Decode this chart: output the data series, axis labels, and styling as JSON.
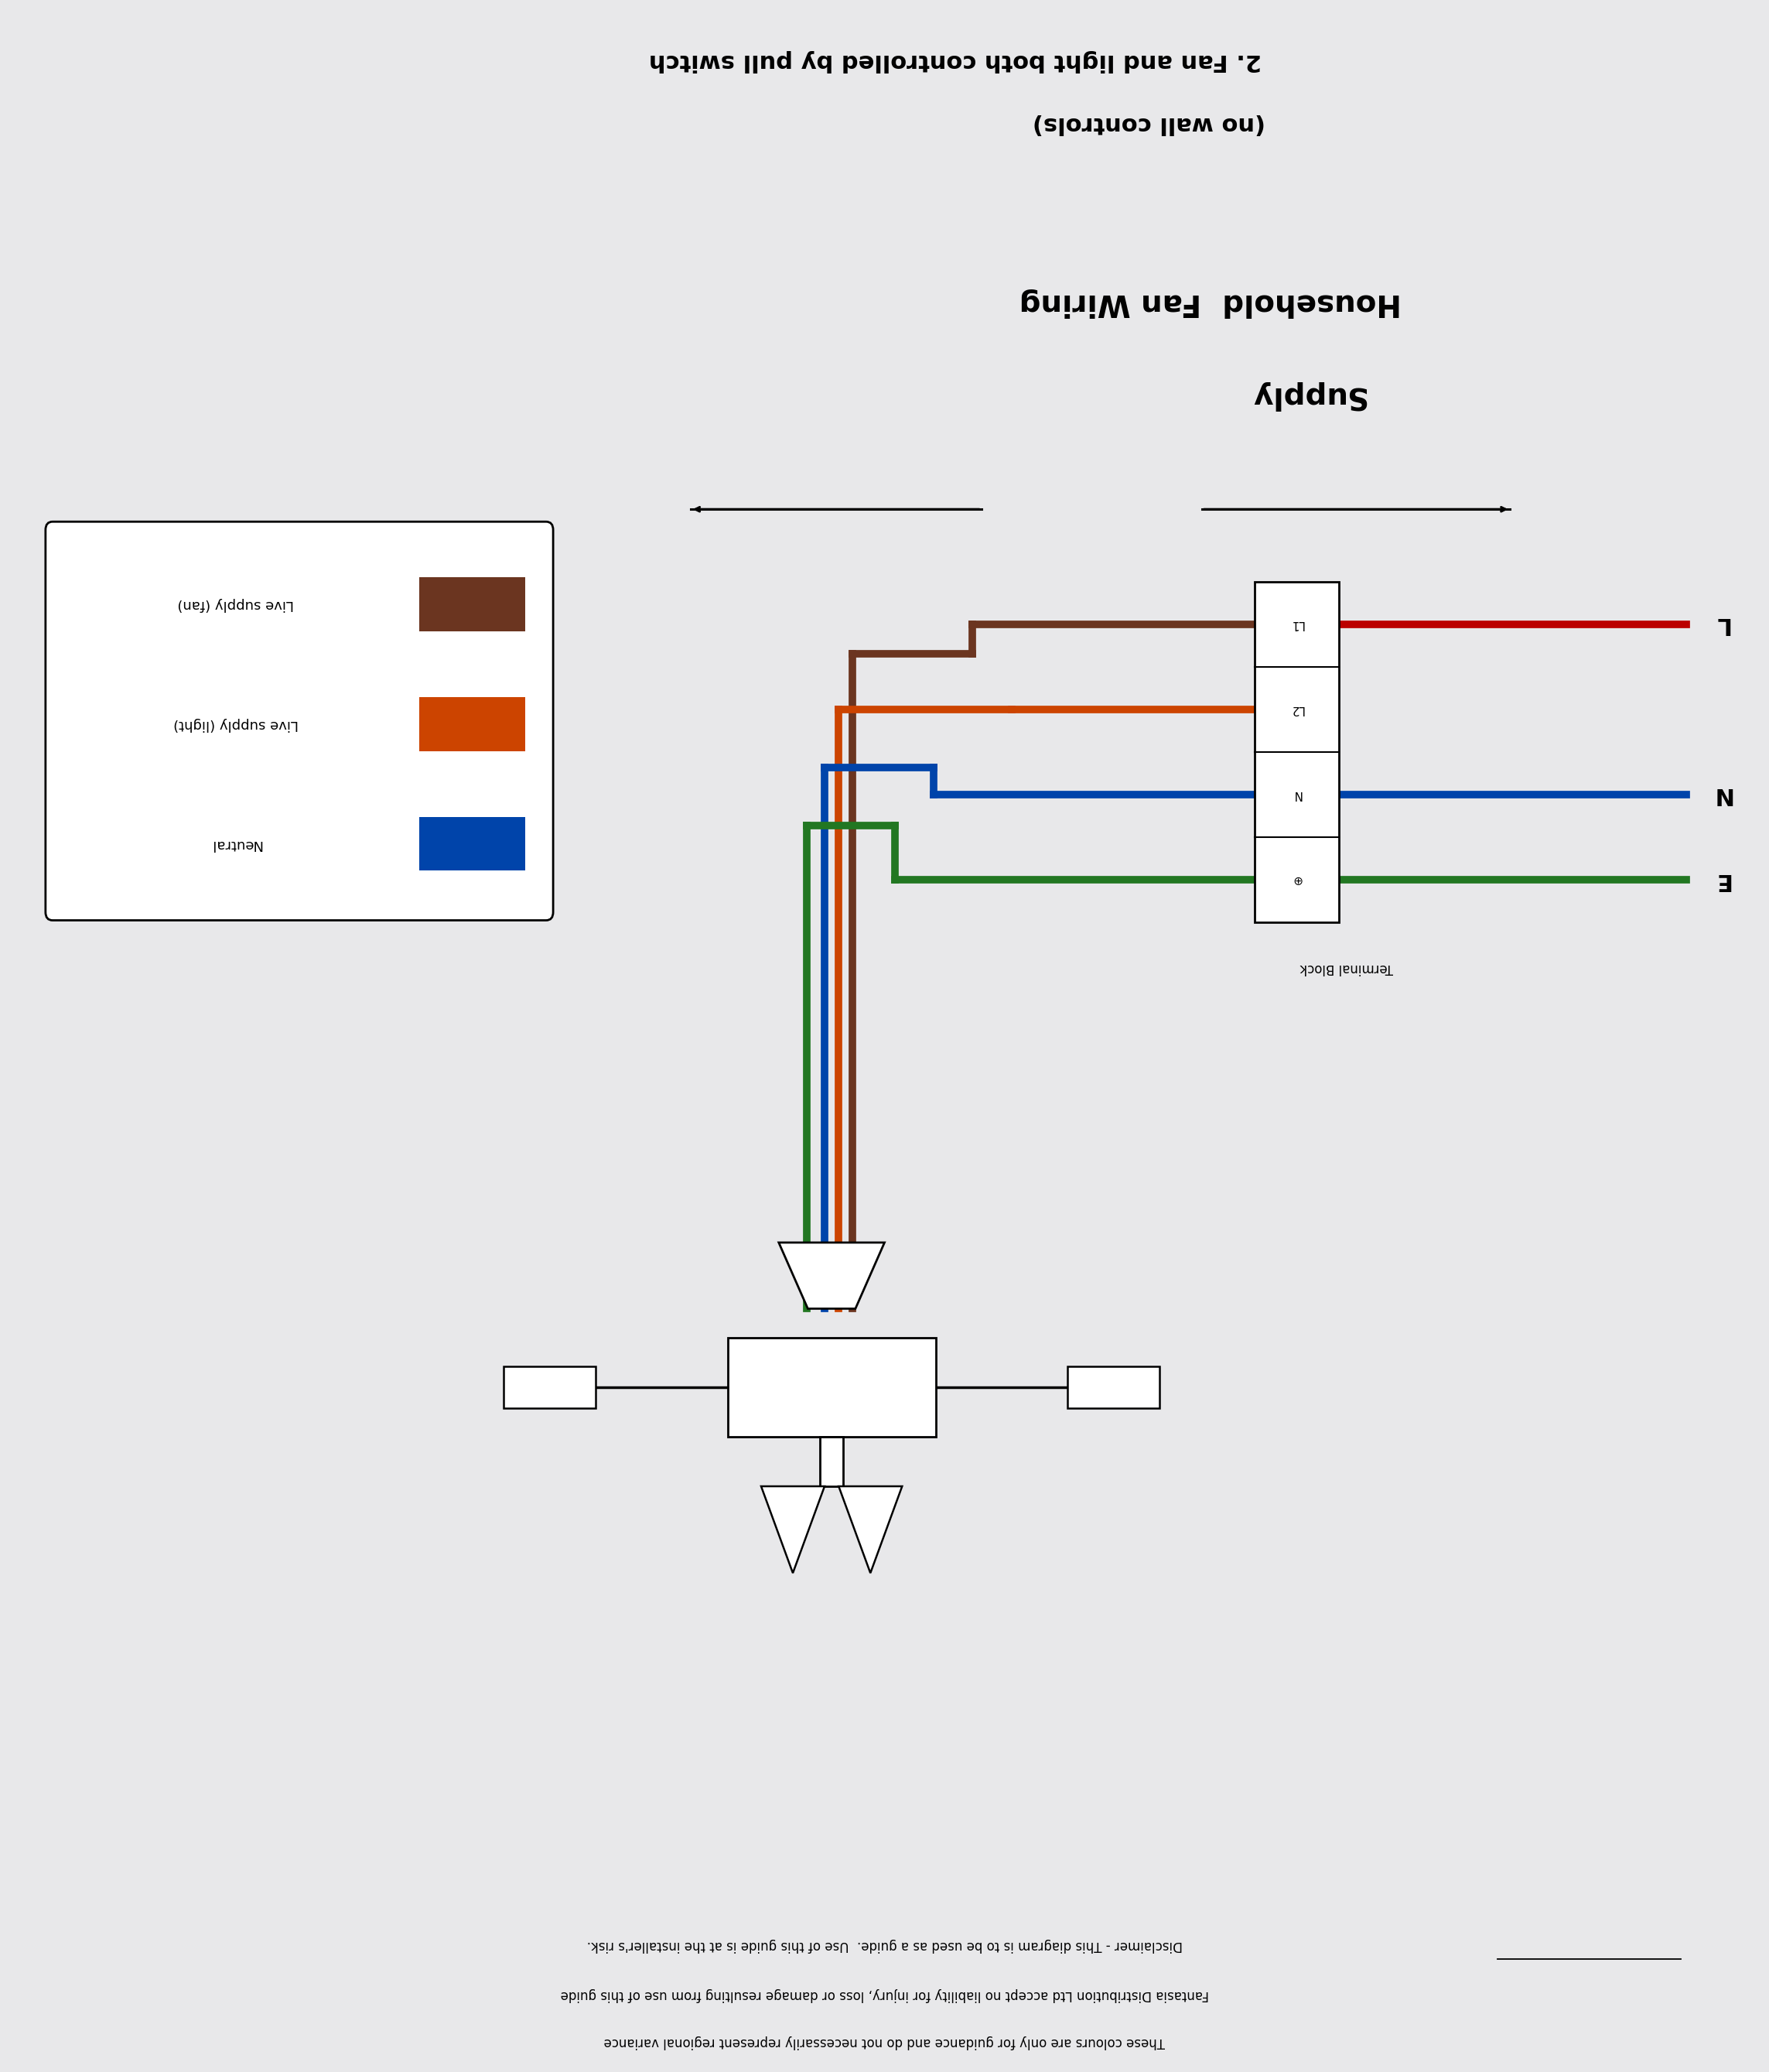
{
  "bg_color": "#e8e8ea",
  "title_line1": "2. Fan and light both controlled by pull switch",
  "title_line2": "(no wall controls)",
  "subtitle_line1": "Household  Fan Wiring",
  "subtitle_line2": "Supply",
  "wire_colors": {
    "brown": "#6B3520",
    "orange": "#CC4400",
    "red": "#BB0000",
    "blue": "#0044AA",
    "green": "#227722"
  },
  "legend_labels": [
    "Live supply (fan)",
    "Live supply (light)",
    "Neutral"
  ],
  "legend_colors": [
    "#6B3520",
    "#CC4400",
    "#0044AA"
  ],
  "terminal_labels": [
    "L1",
    "L2",
    "N",
    "E"
  ],
  "disclaimer_line1": "Disclaimer - This diagram is to be used as a guide.  Use of this guide is at the installer's risk.",
  "disclaimer_line2": "Fantasia Distribution Ltd accept no liability for injury, loss or damage resulting from use of this guide",
  "disclaimer_line3": "These colours are only for guidance and do not necessarily represent regional variance"
}
